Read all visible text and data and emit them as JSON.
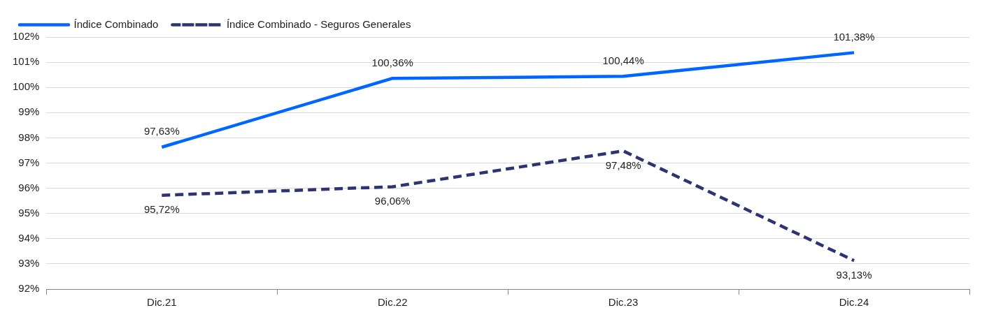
{
  "chart_data": {
    "type": "line",
    "categories": [
      "Dic.21",
      "Dic.22",
      "Dic.23",
      "Dic.24"
    ],
    "series": [
      {
        "name": "Índice Combinado",
        "color": "#0066ff",
        "line_style": "solid",
        "values": [
          97.63,
          100.36,
          100.44,
          101.38
        ],
        "value_labels": [
          "97,63%",
          "100,36%",
          "100,44%",
          "101,38%"
        ]
      },
      {
        "name": "Índice Combinado - Seguros Generales",
        "color": "#2e3470",
        "line_style": "dashed",
        "values": [
          95.72,
          96.06,
          97.48,
          93.13
        ],
        "value_labels": [
          "95,72%",
          "96,06%",
          "97,48%",
          "93,13%"
        ]
      }
    ],
    "ylim": [
      92,
      102
    ],
    "yticks": [
      {
        "value": 92,
        "label": "92%"
      },
      {
        "value": 93,
        "label": "93%"
      },
      {
        "value": 94,
        "label": "94%"
      },
      {
        "value": 95,
        "label": "95%"
      },
      {
        "value": 96,
        "label": "96%"
      },
      {
        "value": 97,
        "label": "97%"
      },
      {
        "value": 98,
        "label": "98%"
      },
      {
        "value": 99,
        "label": "99%"
      },
      {
        "value": 100,
        "label": "100%"
      },
      {
        "value": 101,
        "label": "101%"
      },
      {
        "value": 102,
        "label": "102%"
      }
    ],
    "grid": "y",
    "legend": "top left",
    "marker": "none"
  }
}
